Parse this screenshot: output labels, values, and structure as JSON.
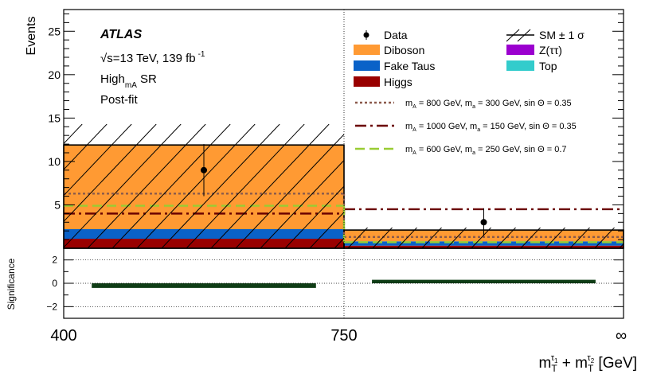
{
  "chart_data": {
    "type": "bar",
    "experiment": "ATLAS",
    "energy_line_sqrt": "√s",
    "energy_line_rest": "=13 TeV, 139 fb",
    "energy_line_sup": "-1",
    "region_main": "High",
    "region_sub": "mA",
    "region_suffix": " SR",
    "fit_status": "Post-fit",
    "ylabel": "Events",
    "xlabel_base": "m",
    "xlabel_sub": "T",
    "xlabel_sup1": "τ",
    "xlabel_sup1_idx": "1",
    "xlabel_plus": " + m",
    "xlabel_sup2": "τ",
    "xlabel_sup2_idx": "2",
    "xlabel_unit": " [GeV]",
    "x_tick_labels": [
      "400",
      "750",
      "∞"
    ],
    "y_tick_labels": [
      "5",
      "10",
      "15",
      "20",
      "25"
    ],
    "ylim": [
      0,
      27.5
    ],
    "bins": [
      "400-750",
      "750-∞"
    ],
    "stack": [
      {
        "name": "Higgs",
        "color": "#990000",
        "values": [
          1.1,
          0.3
        ]
      },
      {
        "name": "Fake Taus",
        "color": "#0a62c8",
        "values": [
          1.1,
          0.5
        ]
      },
      {
        "name": "Diboson",
        "color": "#ff9a33",
        "values": [
          9.7,
          1.3
        ]
      },
      {
        "name": "Z(ττ)",
        "color": "#9b00cf",
        "values": [
          0.0,
          0.0
        ]
      },
      {
        "name": "Top",
        "color": "#33cccc",
        "values": [
          0.0,
          0.0
        ]
      }
    ],
    "total": [
      11.9,
      2.1
    ],
    "uncertainty": [
      {
        "low": 0,
        "high": 14.3
      },
      {
        "low": 0,
        "high": 2.4
      }
    ],
    "data_points": [
      {
        "value": 9.0,
        "err_low": 3.0,
        "err_high": 3.0
      },
      {
        "value": 3.0,
        "err_low": 1.6,
        "err_high": 1.6
      }
    ],
    "signals": [
      {
        "label": "m",
        "label_sub": "A",
        "label_mid": " = 800 GeV, m",
        "label_sub2": "a",
        "label_rest": " = 300 GeV, sin Θ = 0.35",
        "color": "#8b5a4c",
        "dash": "3,3",
        "values": [
          6.3,
          1.3
        ]
      },
      {
        "label": "m",
        "label_sub": "A",
        "label_mid": " = 1000 GeV, m",
        "label_sub2": "a",
        "label_rest": " = 150 GeV, sin Θ = 0.35",
        "color": "#6b0000",
        "dash": "14,5,3,5",
        "values": [
          4.0,
          4.5
        ]
      },
      {
        "label": "m",
        "label_sub": "A",
        "label_mid": " = 600 GeV, m",
        "label_sub2": "a",
        "label_rest": " = 250 GeV, sin Θ = 0.7",
        "color": "#99cc33",
        "dash": "12,6",
        "values": [
          4.9,
          0.7
        ]
      }
    ],
    "legend": {
      "data": "Data",
      "sm_unc": "SM ± 1 σ",
      "diboson": "Diboson",
      "ztt": "Z(ττ)",
      "fake": "Fake Taus",
      "top": "Top",
      "higgs": "Higgs"
    },
    "significance": {
      "ylabel": "Significance",
      "tick_labels": [
        "2",
        "0",
        "−2"
      ],
      "ylim": [
        -3.0,
        3.0
      ],
      "values": [
        -0.4,
        0.3
      ],
      "color": "#0f3d16"
    }
  }
}
